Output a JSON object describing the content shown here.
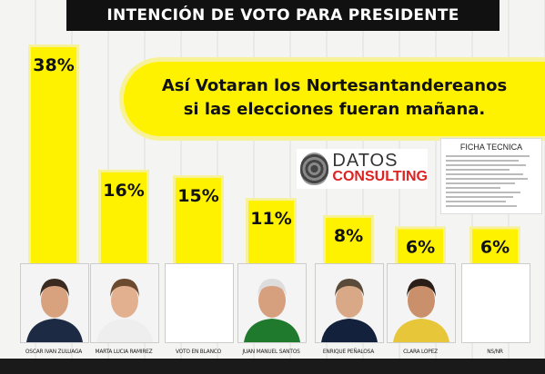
{
  "header": {
    "title": "INTENCIÓN DE VOTO PARA PRESIDENTE"
  },
  "banner": {
    "line1": "Así Votaran los Nortesantandereanos",
    "line2": "si las elecciones fueran mañana."
  },
  "logo": {
    "brand_top": "DATOS",
    "brand_bottom": "CONSULTING"
  },
  "ficha": {
    "title": "FICHA TECNICA"
  },
  "chart_data": {
    "type": "bar",
    "categories": [
      "OSCAR IVAN ZULUAGA",
      "MARTA LUCIA RAMIREZ",
      "VOTO EN BLANCO",
      "JUAN MANUEL SANTOS",
      "ENRIQUE PEÑALOSA",
      "CLARA LOPEZ",
      "NS/NR"
    ],
    "values": [
      38,
      16,
      15,
      11,
      8,
      6,
      6
    ],
    "value_labels": [
      "38%",
      "16%",
      "15%",
      "11%",
      "8%",
      "6%",
      "6%"
    ],
    "title": "INTENCIÓN DE VOTO PARA PRESIDENTE",
    "colors": {
      "bar": "#fff200",
      "bar_edge": "#f7f29a",
      "text": "#111111"
    }
  },
  "photos": [
    {
      "name": "OSCAR IVAN ZULUAGA",
      "skin": "#d8a27f",
      "hair": "#3a2a20",
      "shirt": "#1d2a44"
    },
    {
      "name": "MARTA LUCIA RAMIREZ",
      "skin": "#e2b08e",
      "hair": "#6b4a30",
      "shirt": "#eeeeee"
    },
    {
      "name": "VOTO EN BLANCO",
      "skin": "",
      "hair": "",
      "shirt": ""
    },
    {
      "name": "JUAN MANUEL SANTOS",
      "skin": "#d6a07e",
      "hair": "#dddddd",
      "shirt": "#1f7a2e"
    },
    {
      "name": "ENRIQUE PEÑALOSA",
      "skin": "#d9a987",
      "hair": "#5a4a3a",
      "shirt": "#14213d"
    },
    {
      "name": "CLARA LOPEZ",
      "skin": "#c9906b",
      "hair": "#2b1e16",
      "shirt": "#e8c63a"
    },
    {
      "name": "NS/NR",
      "skin": "",
      "hair": "",
      "shirt": ""
    }
  ]
}
